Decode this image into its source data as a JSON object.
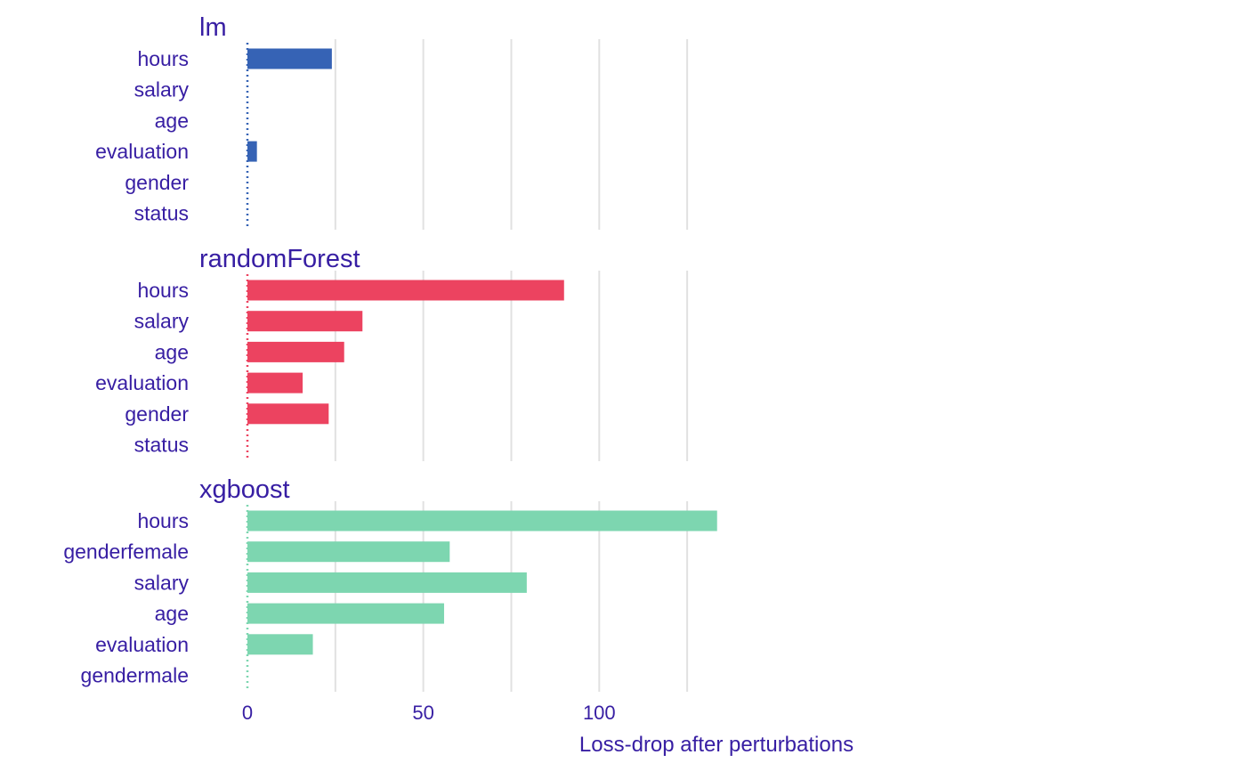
{
  "chart_data": {
    "type": "bar",
    "orientation": "horizontal",
    "xlabel": "Loss-drop after perturbations",
    "xlim": [
      0,
      134
    ],
    "xticks": [
      0,
      50,
      100
    ],
    "xtick_labels": [
      "0",
      "50",
      "100"
    ],
    "grid": true,
    "text_color": "#371EA3",
    "grid_color": "#E1E1E1",
    "panels": [
      {
        "title": "lm",
        "color": "#3663B5",
        "categories": [
          "hours",
          "salary",
          "age",
          "evaluation",
          "gender",
          "status"
        ],
        "values": [
          24,
          0,
          0,
          2.7,
          0,
          0
        ]
      },
      {
        "title": "randomForest",
        "color": "#EC4360",
        "categories": [
          "hours",
          "salary",
          "age",
          "evaluation",
          "gender",
          "status"
        ],
        "values": [
          90,
          32.7,
          27.5,
          15.7,
          23.1,
          0
        ]
      },
      {
        "title": "xgboost",
        "color": "#7DD6B0",
        "categories": [
          "hours",
          "genderfemale",
          "salary",
          "age",
          "evaluation",
          "gendermale"
        ],
        "values": [
          133.5,
          57.5,
          79.4,
          55.9,
          18.6,
          0
        ]
      }
    ]
  }
}
